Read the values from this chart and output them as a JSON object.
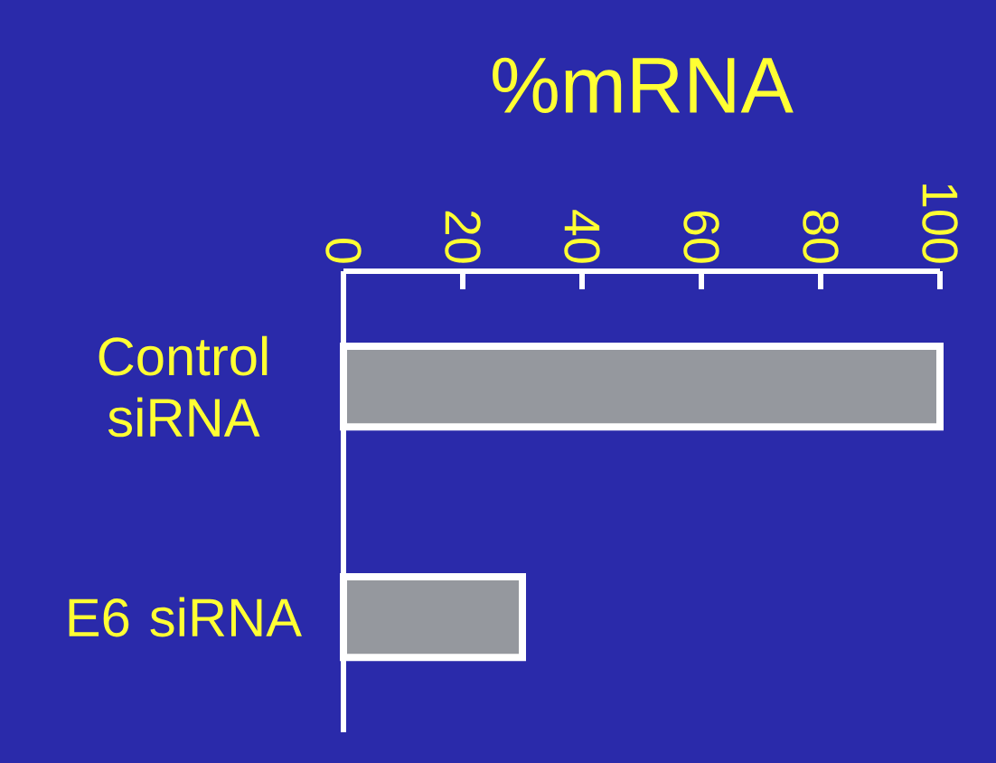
{
  "chart_data": {
    "type": "bar",
    "orientation": "horizontal",
    "title": "%mRNA",
    "categories": [
      "Control siRNA",
      "E6 siRNA"
    ],
    "values": [
      100,
      30
    ],
    "color": "#95989e",
    "xlim": [
      0,
      100
    ],
    "xticks": [
      0,
      20,
      40,
      60,
      80,
      100
    ]
  }
}
